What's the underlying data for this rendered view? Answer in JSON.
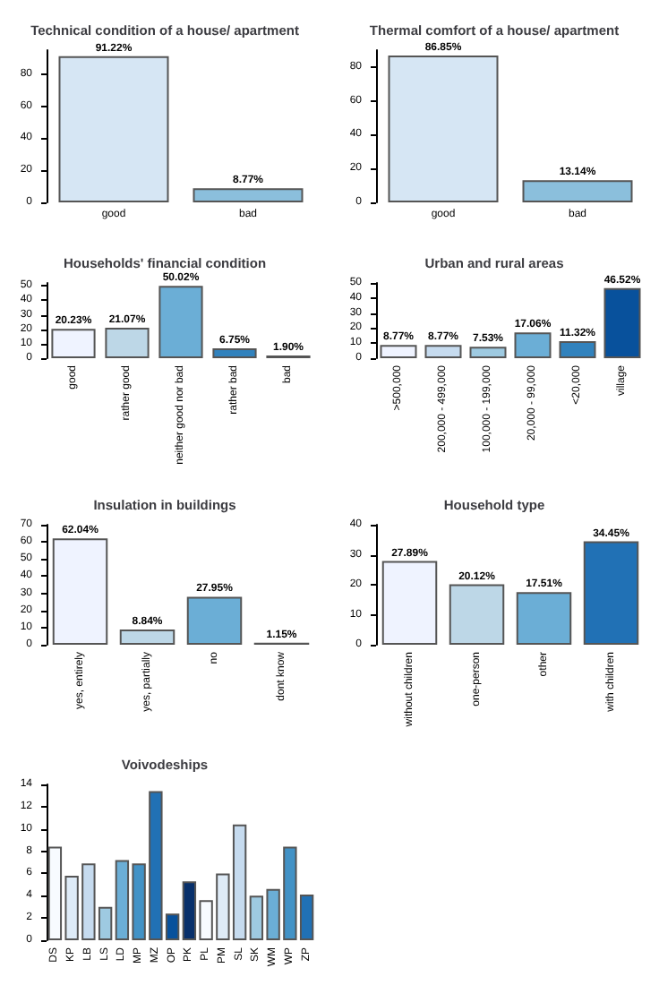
{
  "chart_data": [
    {
      "type": "bar",
      "title": "Technical condition of a house/ apartment",
      "categories": [
        "good",
        "bad"
      ],
      "values": [
        91.22,
        8.77
      ],
      "colors": [
        "#d6e6f4",
        "#8bbfdc"
      ],
      "value_labels": [
        "91.22%",
        "8.77%"
      ],
      "ylim": [
        0,
        95
      ],
      "yticks": [
        0,
        20,
        40,
        60,
        80
      ]
    },
    {
      "type": "bar",
      "title": "Thermal comfort of a house/ apartment",
      "categories": [
        "good",
        "bad"
      ],
      "values": [
        86.85,
        13.14
      ],
      "colors": [
        "#d6e6f4",
        "#8bbfdc"
      ],
      "value_labels": [
        "86.85%",
        "13.14%"
      ],
      "ylim": [
        0,
        90
      ],
      "yticks": [
        0,
        20,
        40,
        60,
        80
      ]
    },
    {
      "type": "bar",
      "title": "Households' financial condition",
      "categories": [
        "good",
        "rather good",
        "neither good nor bad",
        "rather bad",
        "bad"
      ],
      "values": [
        20.23,
        21.07,
        50.02,
        6.75,
        1.9
      ],
      "colors": [
        "#eff3ff",
        "#bdd7e7",
        "#6baed6",
        "#3182bd",
        "#08519c"
      ],
      "value_labels": [
        "20.23%",
        "21.07%",
        "50.02%",
        "6.75%",
        "1.90%"
      ],
      "ylim": [
        0,
        52
      ],
      "yticks": [
        0,
        10,
        20,
        30,
        40,
        50
      ]
    },
    {
      "type": "bar",
      "title": "Urban and rural areas",
      "categories": [
        ">500,000",
        "200,000 - 499,000",
        "100,000 - 199,000",
        "20,000 - 99,000",
        "<20,000",
        "village"
      ],
      "values": [
        8.77,
        8.77,
        7.53,
        17.06,
        11.32,
        46.52
      ],
      "colors": [
        "#eff3ff",
        "#c6dbef",
        "#9ecae1",
        "#6baed6",
        "#3182bd",
        "#08519c"
      ],
      "value_labels": [
        "8.77%",
        "8.77%",
        "7.53%",
        "17.06%",
        "11.32%",
        "46.52%"
      ],
      "ylim": [
        0,
        50
      ],
      "yticks": [
        0,
        10,
        20,
        30,
        40,
        50
      ]
    },
    {
      "type": "bar",
      "title": "Insulation in buildings",
      "categories": [
        "yes, entirely",
        "yes, partially",
        "no",
        "dont know"
      ],
      "values": [
        62.04,
        8.84,
        27.95,
        1.15
      ],
      "colors": [
        "#eff3ff",
        "#bdd7e7",
        "#6baed6",
        "#2171b5"
      ],
      "value_labels": [
        "62.04%",
        "8.84%",
        "27.95%",
        "1.15%"
      ],
      "ylim": [
        0,
        70
      ],
      "yticks": [
        0,
        10,
        20,
        30,
        40,
        50,
        60,
        70
      ]
    },
    {
      "type": "bar",
      "title": "Household type",
      "categories": [
        "without children",
        "one-person",
        "other",
        "with children"
      ],
      "values": [
        27.89,
        20.12,
        17.51,
        34.45
      ],
      "colors": [
        "#eff3ff",
        "#bdd7e7",
        "#6baed6",
        "#2171b5"
      ],
      "value_labels": [
        "27.89%",
        "20.12%",
        "17.51%",
        "34.45%"
      ],
      "ylim": [
        0,
        40
      ],
      "yticks": [
        0,
        10,
        20,
        30,
        40
      ]
    },
    {
      "type": "bar",
      "title": "Voivodeships",
      "categories": [
        "DS",
        "KP",
        "LB",
        "LS",
        "LD",
        "MP",
        "MZ",
        "OP",
        "PK",
        "PL",
        "PM",
        "SL",
        "SK",
        "WM",
        "WP",
        "ZP"
      ],
      "values": [
        8.4,
        5.8,
        6.9,
        3.0,
        7.2,
        6.9,
        13.4,
        2.4,
        5.3,
        3.6,
        6.0,
        10.4,
        4.0,
        4.6,
        8.4,
        4.1
      ],
      "colors": [
        "#f7fbff",
        "#deebf7",
        "#c6dbef",
        "#9ecae1",
        "#6baed6",
        "#4292c6",
        "#2171b5",
        "#08519c",
        "#08306b",
        "#f7fbff",
        "#deebf7",
        "#c6dbef",
        "#9ecae1",
        "#6baed6",
        "#4292c6",
        "#2171b5"
      ],
      "ylim": [
        0,
        14
      ],
      "yticks": [
        0,
        2,
        4,
        6,
        8,
        10,
        12,
        14
      ]
    }
  ]
}
